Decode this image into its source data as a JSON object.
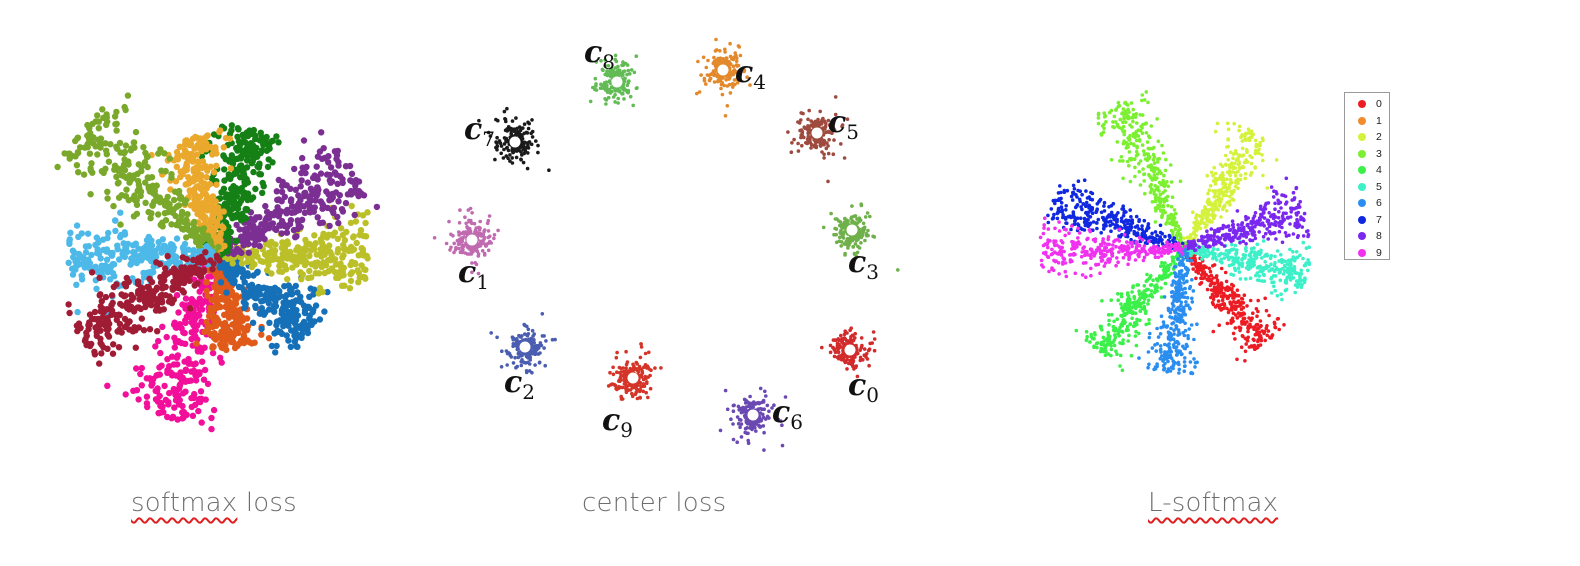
{
  "panels": [
    {
      "id": "softmax",
      "caption": "softmax loss",
      "caption_parts": {
        "misspelled": "softmax",
        "rest": " loss"
      },
      "chart_data": {
        "type": "scatter",
        "description_kind": "radial 2D feature embedding",
        "series": [
          {
            "color": "#f20f9a",
            "angle_deg": 109,
            "length": 170
          },
          {
            "color": "#e05a1a",
            "angle_deg": 80,
            "length": 95
          },
          {
            "color": "#1570b8",
            "angle_deg": 40,
            "length": 120
          },
          {
            "color": "#bcc028",
            "angle_deg": 0,
            "length": 150
          },
          {
            "color": "#7c2f93",
            "angle_deg": -33,
            "length": 160
          },
          {
            "color": "#158015",
            "angle_deg": -75,
            "length": 130
          },
          {
            "color": "#eaa82c",
            "angle_deg": -105,
            "length": 120
          },
          {
            "color": "#7aa82a",
            "angle_deg": -138,
            "length": 185
          },
          {
            "color": "#4db9e8",
            "angle_deg": 178,
            "length": 150
          },
          {
            "color": "#a01c35",
            "angle_deg": 150,
            "length": 160
          }
        ]
      }
    },
    {
      "id": "center",
      "caption": "center loss",
      "chart_data": {
        "type": "scatter",
        "series": [
          {
            "label": "c",
            "sub": "0",
            "color": "#d22b2b"
          },
          {
            "label": "c",
            "sub": "1",
            "color": "#c06ab0"
          },
          {
            "label": "c",
            "sub": "2",
            "color": "#4b5db0"
          },
          {
            "label": "c",
            "sub": "3",
            "color": "#6fb04a"
          },
          {
            "label": "c",
            "sub": "4",
            "color": "#e4892b"
          },
          {
            "label": "c",
            "sub": "5",
            "color": "#9e4a3e"
          },
          {
            "label": "c",
            "sub": "6",
            "color": "#6a49b2"
          },
          {
            "label": "c",
            "sub": "7",
            "color": "#1a1a1a"
          },
          {
            "label": "c",
            "sub": "8",
            "color": "#62bb55"
          },
          {
            "label": "c",
            "sub": "9",
            "color": "#d43528"
          }
        ]
      }
    },
    {
      "id": "lsoftmax",
      "caption": "L-softmax",
      "caption_parts": {
        "misspelled": "L-softmax",
        "rest": ""
      },
      "chart_data": {
        "type": "scatter",
        "legend_position": "right",
        "series": [
          {
            "name": "0",
            "color": "#ec1c24",
            "angle_deg": 50,
            "length": 125
          },
          {
            "name": "1",
            "color": "#f28a2e",
            "angle_deg": 0,
            "length": 8
          },
          {
            "name": "2",
            "color": "#d4f23c",
            "angle_deg": -58,
            "length": 135
          },
          {
            "name": "3",
            "color": "#7cf030",
            "angle_deg": -115,
            "length": 160
          },
          {
            "name": "4",
            "color": "#3cf04a",
            "angle_deg": 130,
            "length": 135
          },
          {
            "name": "5",
            "color": "#3cf0c8",
            "angle_deg": 12,
            "length": 125
          },
          {
            "name": "6",
            "color": "#2a8ef0",
            "angle_deg": 97,
            "length": 125
          },
          {
            "name": "7",
            "color": "#1028e0",
            "angle_deg": -160,
            "length": 140
          },
          {
            "name": "8",
            "color": "#7a28f0",
            "angle_deg": -18,
            "length": 125
          },
          {
            "name": "9",
            "color": "#f032f0",
            "angle_deg": 178,
            "length": 145
          }
        ]
      }
    }
  ]
}
